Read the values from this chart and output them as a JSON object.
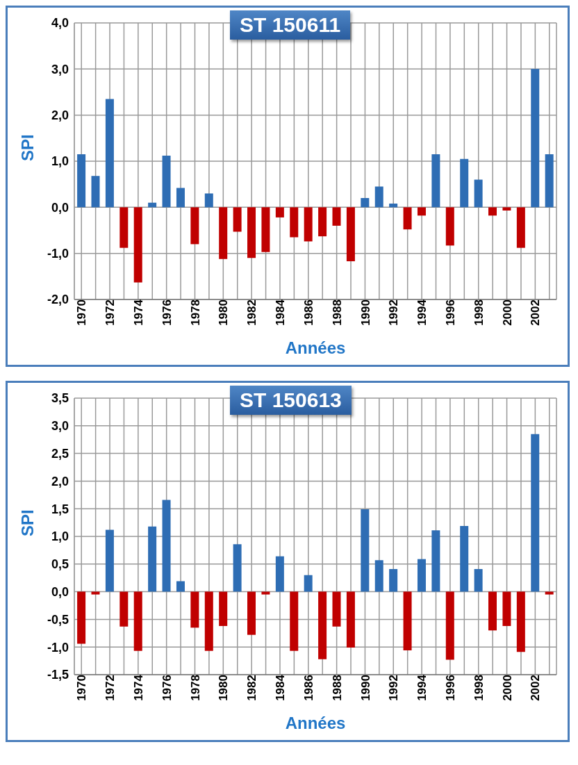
{
  "chart_data": [
    {
      "type": "bar",
      "title": "ST 150611",
      "xlabel": "Années",
      "ylabel": "SPI",
      "grid": true,
      "categories": [
        "1970",
        null,
        "1972",
        null,
        "1974",
        null,
        "1976",
        null,
        "1978",
        null,
        "1980",
        null,
        "1982",
        null,
        "1984",
        null,
        "1986",
        null,
        "1988",
        null,
        "1990",
        null,
        "1992",
        null,
        "1994",
        null,
        "1996",
        null,
        "1998",
        null,
        "2000",
        null,
        "2002",
        null
      ],
      "values": [
        1.15,
        0.68,
        2.35,
        -0.88,
        -1.63,
        0.1,
        1.12,
        0.42,
        -0.8,
        0.3,
        -1.12,
        -0.53,
        -1.1,
        -0.97,
        -0.22,
        -0.65,
        -0.74,
        -0.63,
        -0.4,
        -1.17,
        0.2,
        0.45,
        0.08,
        -0.48,
        -0.18,
        1.15,
        -0.83,
        1.05,
        0.6,
        -0.18,
        -0.07,
        -0.88,
        3.0,
        1.15
      ],
      "colors": [
        "#2e6db4",
        "#2e6db4",
        "#2e6db4",
        "#c00000",
        "#c00000",
        "#2e6db4",
        "#2e6db4",
        "#2e6db4",
        "#c00000",
        "#2e6db4",
        "#c00000",
        "#c00000",
        "#c00000",
        "#c00000",
        "#c00000",
        "#c00000",
        "#c00000",
        "#c00000",
        "#c00000",
        "#c00000",
        "#2e6db4",
        "#2e6db4",
        "#2e6db4",
        "#c00000",
        "#c00000",
        "#2e6db4",
        "#c00000",
        "#2e6db4",
        "#2e6db4",
        "#c00000",
        "#c00000",
        "#c00000",
        "#2e6db4",
        "#2e6db4"
      ],
      "ylim": [
        -2,
        4
      ],
      "yticks": [
        {
          "value": -2,
          "label": "-2,0"
        },
        {
          "value": -1,
          "label": "-1,0"
        },
        {
          "value": 0,
          "label": "0,0"
        },
        {
          "value": 1,
          "label": "1,0"
        },
        {
          "value": 2,
          "label": "2,0"
        },
        {
          "value": 3,
          "label": "3,0"
        },
        {
          "value": 4,
          "label": "4,0"
        }
      ]
    },
    {
      "type": "bar",
      "title": "ST 150613",
      "xlabel": "Années",
      "ylabel": "SPI",
      "grid": true,
      "categories": [
        "1970",
        null,
        "1972",
        null,
        "1974",
        null,
        "1976",
        null,
        "1978",
        null,
        "1980",
        null,
        "1982",
        null,
        "1984",
        null,
        "1986",
        null,
        "1988",
        null,
        "1990",
        null,
        "1992",
        null,
        "1994",
        null,
        "1996",
        null,
        "1998",
        null,
        "2000",
        null,
        "2002",
        null
      ],
      "values": [
        -0.94,
        -0.05,
        1.12,
        -0.63,
        -1.07,
        1.18,
        1.66,
        0.19,
        -0.65,
        -1.07,
        -0.62,
        0.86,
        -0.78,
        -0.05,
        0.64,
        -1.07,
        0.3,
        -1.22,
        -0.63,
        -1.01,
        1.49,
        0.57,
        0.41,
        -1.06,
        0.59,
        1.11,
        -1.23,
        1.19,
        0.41,
        -0.7,
        -0.62,
        -1.09,
        2.85,
        -0.05
      ],
      "colors": [
        "#c00000",
        "#c00000",
        "#2e6db4",
        "#c00000",
        "#c00000",
        "#2e6db4",
        "#2e6db4",
        "#2e6db4",
        "#c00000",
        "#c00000",
        "#c00000",
        "#2e6db4",
        "#c00000",
        "#c00000",
        "#2e6db4",
        "#c00000",
        "#2e6db4",
        "#c00000",
        "#c00000",
        "#c00000",
        "#2e6db4",
        "#2e6db4",
        "#2e6db4",
        "#c00000",
        "#2e6db4",
        "#2e6db4",
        "#c00000",
        "#2e6db4",
        "#2e6db4",
        "#c00000",
        "#c00000",
        "#c00000",
        "#2e6db4",
        "#c00000"
      ],
      "ylim": [
        -1.5,
        3.5
      ],
      "yticks": [
        {
          "value": -1.5,
          "label": "-1,5"
        },
        {
          "value": -1,
          "label": "-1,0"
        },
        {
          "value": -0.5,
          "label": "-0,5"
        },
        {
          "value": 0,
          "label": "0,0"
        },
        {
          "value": 0.5,
          "label": "0,5"
        },
        {
          "value": 1,
          "label": "1,0"
        },
        {
          "value": 1.5,
          "label": "1,5"
        },
        {
          "value": 2,
          "label": "2,0"
        },
        {
          "value": 2.5,
          "label": "2,5"
        },
        {
          "value": 3,
          "label": "3,0"
        },
        {
          "value": 3.5,
          "label": "3,5"
        }
      ]
    }
  ]
}
